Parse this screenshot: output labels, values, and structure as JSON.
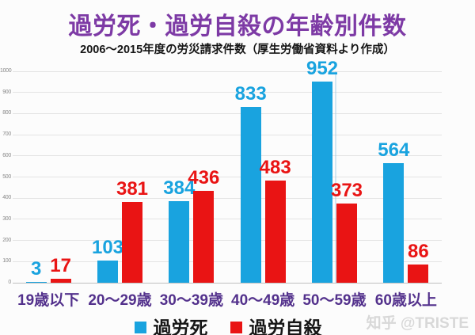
{
  "title": "過労死・過労自殺の年齢別件数",
  "subtitle": "2006～2015年度の労災請求件数（厚生労働省資料より作成）",
  "watermark": "知乎 @TRISTE",
  "colors": {
    "title": "#7D3AA5",
    "subtitle": "#161616",
    "background": "#FCFCFC",
    "watermark": "#D8D8D8",
    "karoshi_blue": "#19A3DF",
    "karojisatsu_red": "#E91414"
  },
  "chart_data": {
    "type": "bar",
    "categories": [
      "19歳以下",
      "20～29歳",
      "30～39歳",
      "40～49歳",
      "50～59歳",
      "60歳以上"
    ],
    "series": [
      {
        "name": "過労死",
        "color": "#19A3DF",
        "values": [
          3,
          103,
          384,
          833,
          952,
          564
        ]
      },
      {
        "name": "過労自殺",
        "color": "#E91414",
        "values": [
          17,
          381,
          436,
          483,
          373,
          86
        ]
      }
    ],
    "ylim": [
      0,
      1000
    ],
    "ytick_interval": 100,
    "grid": "horizontal",
    "legend_position": "bottom",
    "grid_color": "#E4E4E4",
    "axis_line_color": "#BFBFBF",
    "tick_label_color": "#8A8A8A",
    "category_label_color": "#53318C",
    "data_labels": true
  }
}
